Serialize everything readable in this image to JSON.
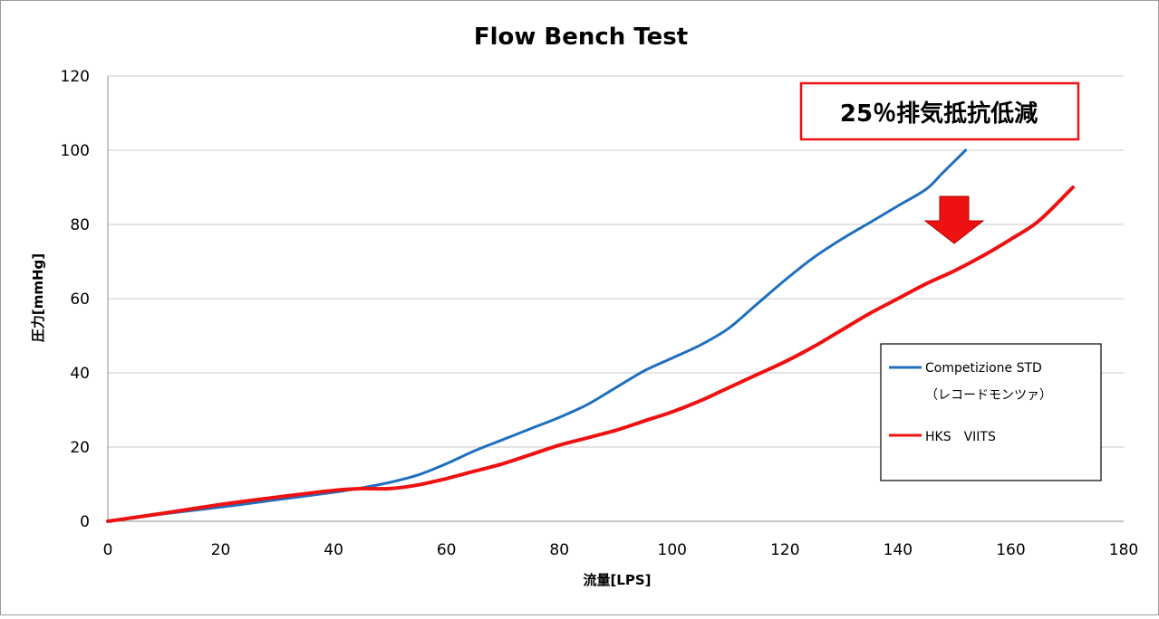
{
  "chart_data": {
    "type": "line",
    "title": "Flow Bench Test",
    "xlabel": "流量[LPS]",
    "ylabel": "圧力[mmHg]",
    "xlim": [
      0,
      180
    ],
    "ylim": [
      0,
      120
    ],
    "xticks": [
      0,
      20,
      40,
      60,
      80,
      100,
      120,
      140,
      160,
      180
    ],
    "yticks": [
      0,
      20,
      40,
      60,
      80,
      100,
      120
    ],
    "grid": "horizontal",
    "legend": {
      "placement": "right",
      "entries": [
        {
          "line1": "Competizione STD",
          "line2": "（レコードモンツァ）",
          "color": "#1f6fbf"
        },
        {
          "line1": "HKS　VIITS",
          "line2": "",
          "color": "#ee1111"
        }
      ]
    },
    "series": [
      {
        "color": "#1f6fbf",
        "x": [
          0,
          10,
          20,
          30,
          40,
          45,
          50,
          55,
          60,
          65,
          70,
          75,
          80,
          85,
          90,
          95,
          100,
          105,
          110,
          115,
          120,
          125,
          130,
          135,
          140,
          145,
          148,
          152
        ],
        "y": [
          0,
          2,
          3.8,
          5.8,
          7.8,
          9,
          10.5,
          12.5,
          15.5,
          19,
          22,
          25,
          28,
          31.5,
          36,
          40.5,
          44,
          47.5,
          52,
          58.5,
          65,
          71,
          76,
          80.5,
          85,
          89.5,
          94,
          100
        ]
      },
      {
        "color": "#ee1111",
        "x": [
          0,
          10,
          20,
          30,
          40,
          45,
          50,
          55,
          60,
          65,
          70,
          75,
          80,
          85,
          90,
          95,
          100,
          105,
          110,
          115,
          120,
          125,
          130,
          135,
          140,
          145,
          150,
          155,
          160,
          165,
          171
        ],
        "y": [
          0,
          2.2,
          4.5,
          6.5,
          8.3,
          8.8,
          8.8,
          9.8,
          11.5,
          13.5,
          15.5,
          18,
          20.5,
          22.5,
          24.5,
          27,
          29.5,
          32.5,
          36,
          39.5,
          43,
          47,
          51.5,
          56,
          60,
          64,
          67.5,
          71.5,
          76,
          81,
          90
        ]
      }
    ],
    "annotations": [
      {
        "text": "25％排気抵抗低減",
        "border_color": "#ee1111"
      }
    ]
  },
  "colors": {
    "grid": "#c8c8c8",
    "axis": "#8c8c8c",
    "arrow": "#ee1111"
  },
  "icons": {
    "arrow": "down-arrow-icon"
  }
}
